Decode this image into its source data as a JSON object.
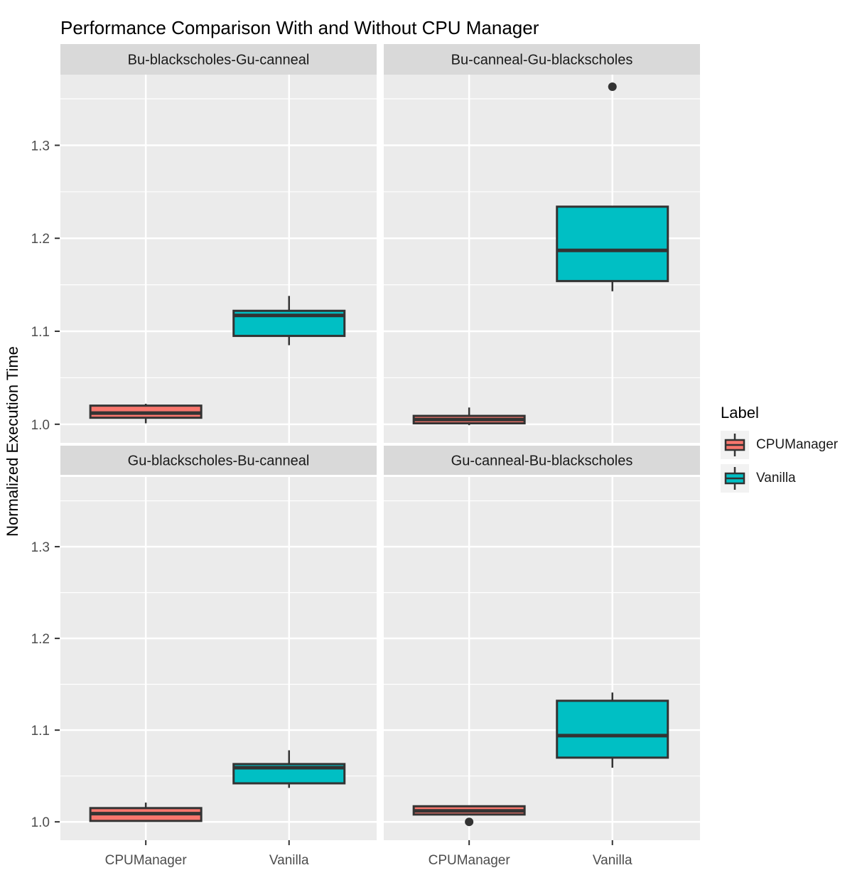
{
  "chart_data": {
    "type": "boxplot",
    "title": "Performance Comparison With and Without CPU Manager",
    "xlabel": "",
    "ylabel": "Normalized Execution Time",
    "x_categories": [
      "CPUManager",
      "Vanilla"
    ],
    "y_ticks": [
      {
        "label": "1.0",
        "value": 1.0
      },
      {
        "label": "1.1",
        "value": 1.1
      },
      {
        "label": "1.2",
        "value": 1.2
      },
      {
        "label": "1.3",
        "value": 1.3
      }
    ],
    "y_minor_gridlines": [
      1.05,
      1.15,
      1.25,
      1.35
    ],
    "y_domain": [
      0.98,
      1.376
    ],
    "grid": true,
    "legend": {
      "title": "Label",
      "position": "right",
      "entries": [
        {
          "label": "CPUManager",
          "color": "#F8766D"
        },
        {
          "label": "Vanilla",
          "color": "#00BFC4"
        }
      ]
    },
    "colors": {
      "box_stroke": "#333333",
      "panel_bg": "#EBEBEB",
      "strip_bg": "#D9D9D9",
      "gridline": "#FFFFFF",
      "axis_text": "#4D4D4D",
      "tick_mark": "#333333",
      "outlier": "#333333"
    },
    "facets": [
      {
        "title": "Bu-blackscholes-Gu-canneal",
        "boxes": [
          {
            "group": "CPUManager",
            "min": 1.001,
            "q1": 1.007,
            "median": 1.012,
            "q3": 1.02,
            "max": 1.022,
            "outliers": []
          },
          {
            "group": "Vanilla",
            "min": 1.085,
            "q1": 1.095,
            "median": 1.117,
            "q3": 1.122,
            "max": 1.138,
            "outliers": []
          }
        ]
      },
      {
        "title": "Bu-canneal-Gu-blackscholes",
        "boxes": [
          {
            "group": "CPUManager",
            "min": 0.999,
            "q1": 1.001,
            "median": 1.005,
            "q3": 1.009,
            "max": 1.018,
            "outliers": []
          },
          {
            "group": "Vanilla",
            "min": 1.143,
            "q1": 1.154,
            "median": 1.187,
            "q3": 1.234,
            "max": 1.234,
            "outliers": [
              1.363
            ]
          }
        ]
      },
      {
        "title": "Gu-blackscholes-Bu-canneal",
        "boxes": [
          {
            "group": "CPUManager",
            "min": 1.001,
            "q1": 1.001,
            "median": 1.009,
            "q3": 1.015,
            "max": 1.021,
            "outliers": []
          },
          {
            "group": "Vanilla",
            "min": 1.037,
            "q1": 1.042,
            "median": 1.059,
            "q3": 1.063,
            "max": 1.078,
            "outliers": []
          }
        ]
      },
      {
        "title": "Gu-canneal-Bu-blackscholes",
        "boxes": [
          {
            "group": "CPUManager",
            "min": 1.008,
            "q1": 1.008,
            "median": 1.012,
            "q3": 1.017,
            "max": 1.018,
            "outliers": [
              1.0
            ]
          },
          {
            "group": "Vanilla",
            "min": 1.059,
            "q1": 1.07,
            "median": 1.094,
            "q3": 1.132,
            "max": 1.141,
            "outliers": []
          }
        ]
      }
    ]
  }
}
